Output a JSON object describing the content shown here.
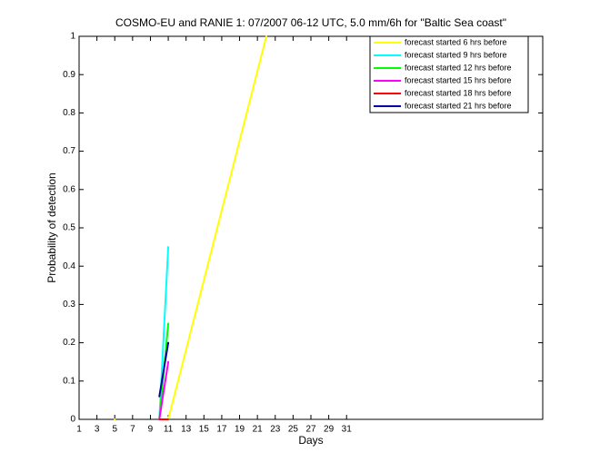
{
  "chart_data": {
    "type": "line",
    "title": "COSMO-EU and RANIE 1: 07/2007 06-12 UTC, 5.0 mm/6h for \"Baltic Sea coast\"",
    "xlabel": "Days",
    "ylabel": "Probability of detection",
    "x": [
      5,
      10,
      11,
      22
    ],
    "series": [
      {
        "name": "forecast started 6 hrs before",
        "color": "#ffff00",
        "values": [
          0,
          null,
          0,
          1
        ]
      },
      {
        "name": "forecast started 9 hrs before",
        "color": "#00ffff",
        "values": [
          null,
          0,
          0.45,
          null
        ]
      },
      {
        "name": "forecast started 12 hrs before",
        "color": "#00ff00",
        "values": [
          null,
          0,
          0.25,
          null
        ]
      },
      {
        "name": "forecast started 15 hrs before",
        "color": "#ff00ff",
        "values": [
          null,
          0,
          0.15,
          null
        ]
      },
      {
        "name": "forecast started 18 hrs before",
        "color": "#ff0000",
        "values": [
          null,
          0,
          0,
          null
        ]
      },
      {
        "name": "forecast started 21 hrs before",
        "color": "#0000aa",
        "values": [
          null,
          0.06,
          0.2,
          null
        ]
      }
    ],
    "xlim": [
      1,
      53
    ],
    "ylim": [
      0,
      1
    ],
    "xticks": [
      1,
      3,
      5,
      7,
      9,
      11,
      13,
      15,
      17,
      19,
      21,
      23,
      25,
      27,
      29,
      31
    ],
    "yticks": [
      0,
      0.1,
      0.2,
      0.3,
      0.4,
      0.5,
      0.6,
      0.7,
      0.8,
      0.9,
      1
    ],
    "legend": "upper-right"
  }
}
